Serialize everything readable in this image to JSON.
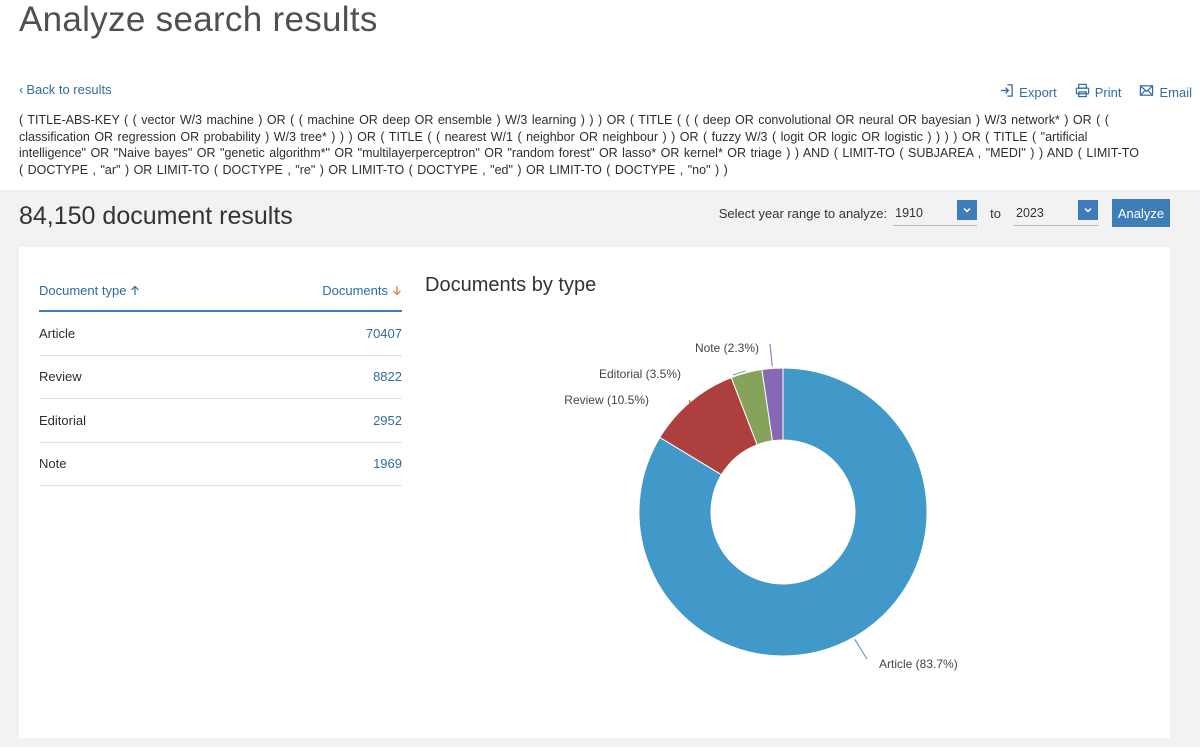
{
  "page": {
    "title": "Analyze search results",
    "back_label": "Back to results"
  },
  "actions": {
    "export": "Export",
    "print": "Print",
    "email": "Email"
  },
  "query": {
    "text": "( TITLE-ABS-KEY ( ( vector  W/3  machine )  OR  ( ( machine  OR  deep  OR  ensemble )  W/3  learning ) ) )  OR  ( TITLE ( ( ( deep  OR  convolutional  OR  neural  OR  bayesian )  W/3  network* )  OR  ( ( classification  OR  regression  OR  probability )  W/3  tree* ) ) )  OR  ( TITLE ( ( nearest  W/1  ( neighbor  OR  neighbour ) )  OR  ( fuzzy  W/3  ( logit  OR  logic  OR  logistic ) ) ) )  OR  ( TITLE ( \"artificial intelligence\"  OR  \"Naive bayes\"  OR  \"genetic algorithm*\"  OR  \"multilayerperceptron\"  OR  \"random forest\"  OR  lasso*  OR  kernel*  OR  triage ) )  AND  ( LIMIT-TO ( SUBJAREA ,  \"MEDI\" ) )  AND  ( LIMIT-TO ( DOCTYPE ,  \"ar\" )  OR  LIMIT-TO ( DOCTYPE ,  \"re\" )  OR  LIMIT-TO ( DOCTYPE ,  \"ed\" )  OR  LIMIT-TO ( DOCTYPE ,  \"no\" ) )"
  },
  "results": {
    "count_label": "84,150 document results"
  },
  "year_range": {
    "label": "Select year range to analyze:",
    "from": "1910",
    "to_label": "to",
    "to": "2023",
    "analyze_label": "Analyze"
  },
  "table": {
    "col_type": "Document type",
    "col_docs": "Documents",
    "rows": [
      {
        "type": "Article",
        "count": "70407"
      },
      {
        "type": "Review",
        "count": "8822"
      },
      {
        "type": "Editorial",
        "count": "2952"
      },
      {
        "type": "Note",
        "count": "1969"
      }
    ]
  },
  "chart_data": {
    "type": "pie",
    "title": "Documents by type",
    "donut": true,
    "categories": [
      "Article",
      "Review",
      "Editorial",
      "Note"
    ],
    "values": [
      70407,
      8822,
      2952,
      1969
    ],
    "labels": [
      "Article (83.7%)",
      "Review (10.5%)",
      "Editorial (3.5%)",
      "Note (2.3%)"
    ],
    "colors": [
      "#4199c9",
      "#ad3f3f",
      "#86a35c",
      "#8868b5"
    ]
  }
}
